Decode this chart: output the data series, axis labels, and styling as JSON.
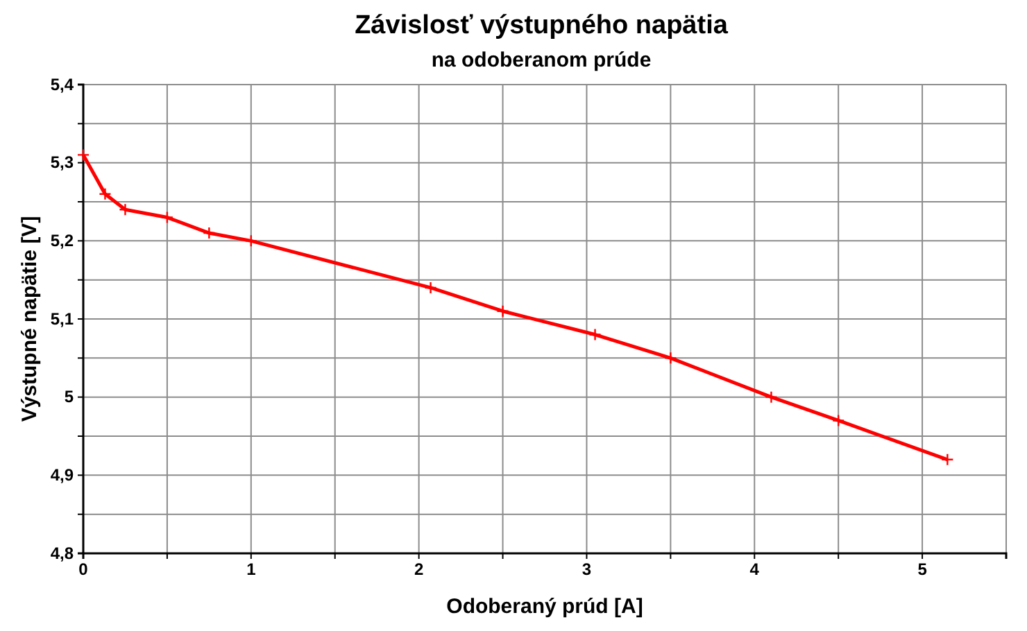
{
  "chart_data": {
    "type": "line",
    "title": "Závislosť výstupného napätia",
    "subtitle": "na odoberanom prúde",
    "xlabel": "Odoberaný prúd [A]",
    "ylabel": "Výstupné napätie [V]",
    "x": [
      0,
      0.13,
      0.25,
      0.5,
      0.75,
      1.0,
      2.07,
      2.5,
      3.05,
      3.5,
      4.1,
      4.5,
      5.15
    ],
    "series": [
      {
        "color": "#ff0000",
        "values": [
          5.31,
          5.26,
          5.24,
          5.23,
          5.21,
          5.2,
          5.14,
          5.11,
          5.08,
          5.05,
          5.0,
          4.97,
          4.92
        ]
      }
    ],
    "xlim": [
      0,
      5.5
    ],
    "ylim": [
      4.8,
      5.4
    ],
    "xticks": [
      0,
      {
        "value": 0.5,
        "label": null
      },
      1,
      {
        "value": 1.5,
        "label": null
      },
      2,
      {
        "value": 2.5,
        "label": null
      },
      3,
      {
        "value": 3.5,
        "label": null
      },
      4,
      {
        "value": 4.5,
        "label": null
      },
      5,
      {
        "value": 5.5,
        "label": null
      }
    ],
    "yticks": [
      {
        "value": 4.8,
        "label": "4,8"
      },
      {
        "value": 4.85,
        "label": null
      },
      {
        "value": 4.9,
        "label": "4,9"
      },
      {
        "value": 4.95,
        "label": null
      },
      {
        "value": 5,
        "label": "5"
      },
      {
        "value": 5.05,
        "label": null
      },
      {
        "value": 5.1,
        "label": "5,1"
      },
      {
        "value": 5.15,
        "label": null
      },
      {
        "value": 5.2,
        "label": "5,2"
      },
      {
        "value": 5.25,
        "label": null
      },
      {
        "value": 5.3,
        "label": "5,3"
      },
      {
        "value": 5.35,
        "label": null
      },
      {
        "value": 5.4,
        "label": "5,4"
      }
    ],
    "grid": true,
    "marker": "cross",
    "line_style": "solid"
  }
}
